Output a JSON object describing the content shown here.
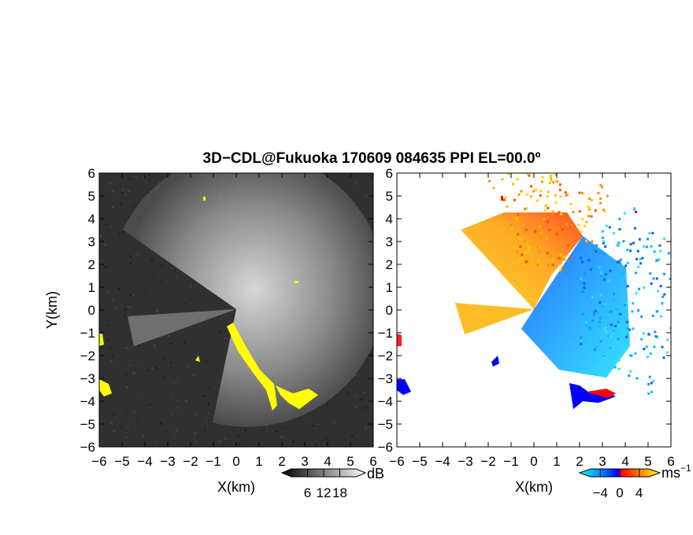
{
  "title": "3D−CDL@Fukuoka 170609 084635 PPI EL=00.0º",
  "chart_data": [
    {
      "type": "heatmap",
      "panel": "left",
      "quantity": "backscatter intensity",
      "xlabel": "X(km)",
      "ylabel": "Y(km)",
      "xlim": [
        -6,
        6
      ],
      "ylim": [
        -6,
        6
      ],
      "xticks": [
        "−6",
        "−5",
        "−4",
        "−3",
        "−2",
        "−1",
        "0",
        "1",
        "2",
        "3",
        "4",
        "5",
        "6"
      ],
      "yticks": [
        "6",
        "5",
        "4",
        "3",
        "2",
        "1",
        "0",
        "−1",
        "−2",
        "−3",
        "−4",
        "−5",
        "−6"
      ],
      "grid": false,
      "colorbar": {
        "unit": "dB",
        "ticks": [
          "6",
          "12",
          "18"
        ],
        "tick_values": [
          6,
          12,
          18
        ],
        "range": [
          0,
          24
        ],
        "colors": [
          "#000000",
          "#ffffff"
        ]
      },
      "highlight_color": "#ffff00",
      "background_color": "#333333"
    },
    {
      "type": "heatmap",
      "panel": "right",
      "quantity": "radial velocity",
      "xlabel": "X(km)",
      "xlim": [
        -6,
        6
      ],
      "ylim": [
        -6,
        6
      ],
      "xticks": [
        "−6",
        "−5",
        "−4",
        "−3",
        "−2",
        "−1",
        "0",
        "1",
        "2",
        "3",
        "4",
        "5",
        "6"
      ],
      "yticks": [
        "6",
        "5",
        "4",
        "3",
        "2",
        "1",
        "0",
        "−1",
        "−2",
        "−3",
        "−4",
        "−5",
        "−6"
      ],
      "grid": false,
      "colorbar": {
        "unit": "ms",
        "unit_exp": "−1",
        "ticks": [
          "−4",
          "0",
          "4"
        ],
        "tick_values": [
          -4,
          0,
          4
        ],
        "range": [
          -6,
          6
        ],
        "colors": [
          "#00ffff",
          "#0080ff",
          "#0000ff",
          "#ff0000",
          "#ff8000",
          "#ffff00"
        ]
      },
      "background_color": "#ffffff"
    }
  ]
}
